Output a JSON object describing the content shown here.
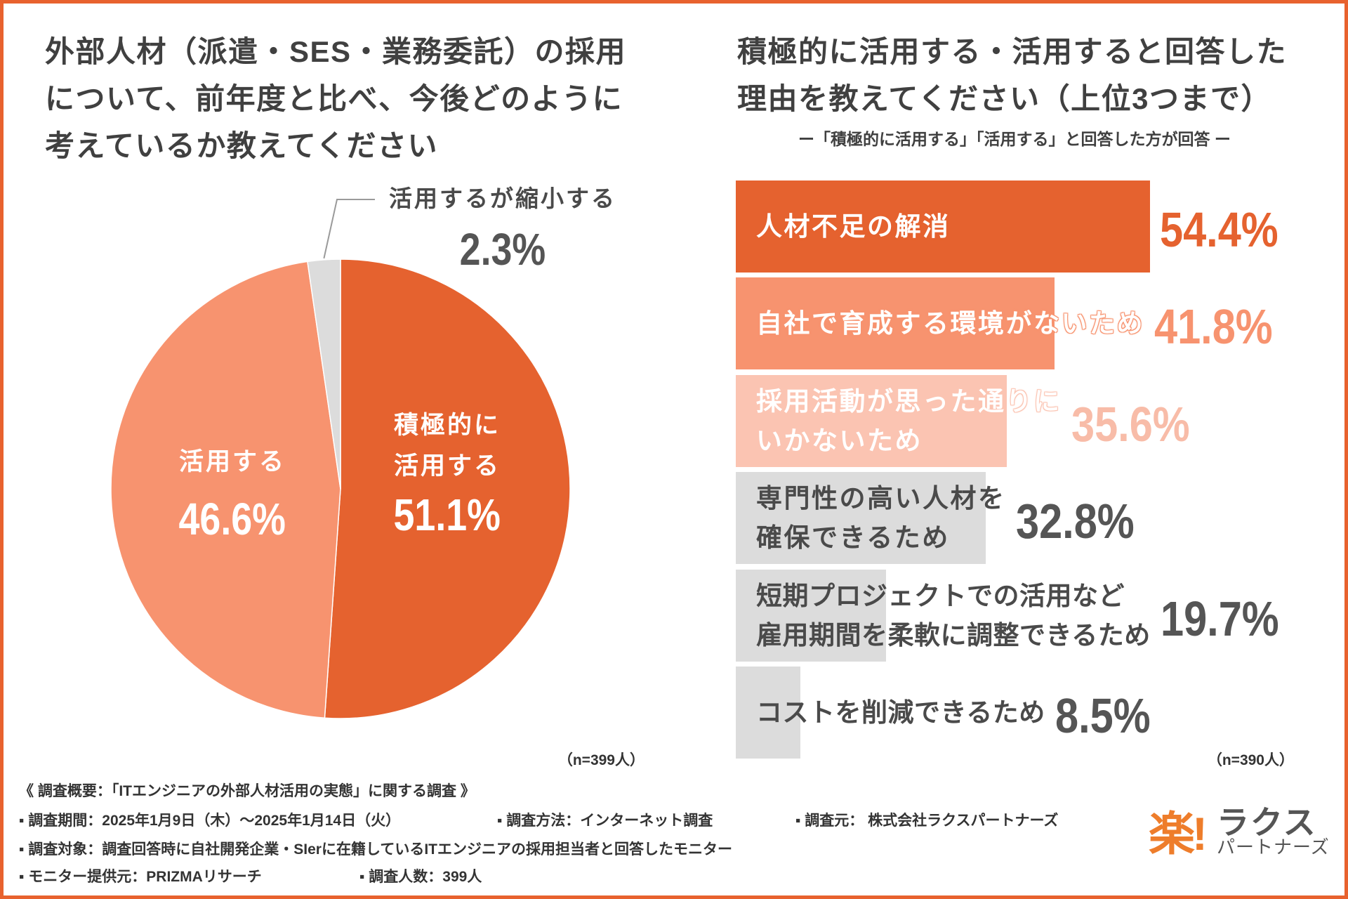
{
  "chart_data": [
    {
      "type": "pie",
      "title_lines": [
        "外部人材（派遣・SES・業務委託）の採用",
        "について、前年度と比べ、今後どのように",
        "考えているか教えてください"
      ],
      "categories": [
        [
          "積極的に",
          "活用する"
        ],
        [
          "活用する"
        ],
        [
          "活用するが縮小する"
        ]
      ],
      "values": [
        51.1,
        46.6,
        2.3
      ],
      "value_labels": [
        "51.1%",
        "46.6%",
        "2.3%"
      ],
      "colors": [
        "#E5622F",
        "#F7936F",
        "#DCDCDC"
      ],
      "label_colors": [
        "#FFFFFF",
        "#FFFFFF",
        "#4A4A4A"
      ],
      "leader_line_on": [
        false,
        false,
        true
      ],
      "sample_note": "（n=399人）"
    },
    {
      "type": "bar",
      "title_lines": [
        "積極的に活用する・活用すると回答した",
        "理由を教えてください（上位3つまで）"
      ],
      "subtitle": "ー「積極的に活用する」「活用する」と回答した方が回答 ー",
      "categories": [
        [
          "人材不足の解消"
        ],
        [
          "自社で育成する環境がないため"
        ],
        [
          "採用活動が思った通りに",
          "いかないため"
        ],
        [
          "専門性の高い人材を",
          "確保できるため"
        ],
        [
          "短期プロジェクトでの活用など",
          "雇用期間を柔軟に調整できるため"
        ],
        [
          "コストを削減できるため"
        ]
      ],
      "values": [
        54.4,
        41.8,
        35.6,
        32.8,
        19.7,
        8.5
      ],
      "value_labels": [
        "54.4%",
        "41.8%",
        "35.6%",
        "32.8%",
        "19.7%",
        "8.5%"
      ],
      "xlim": [
        0,
        100
      ],
      "bar_colors": [
        "#E5622F",
        "#F7936F",
        "#FBC4B2",
        "#DCDCDC",
        "#DCDCDC",
        "#DCDCDC"
      ],
      "label_colors": [
        "#FFFFFF",
        "#FFFFFF",
        "#FFFFFF",
        "#4A4A4A",
        "#4A4A4A",
        "#4A4A4A"
      ],
      "value_colors": [
        "#E5622F",
        "#F7936F",
        "#F8BCA8",
        "#555555",
        "#555555",
        "#555555"
      ],
      "sample_note": "（n=390人）"
    }
  ],
  "survey_summary": {
    "heading": "《 調査概要：「ITエンジニアの外部人材活用の実態」に関する調査 》",
    "period": "▪ 調査期間：2025年1月9日（木）～2025年1月14日（火）",
    "method": "▪ 調査方法：インターネット調査",
    "source": "▪ 調査元： 株式会社ラクスパートナーズ",
    "target": "▪ 調査対象：調査回答時に自社開発企業・SIerに在籍しているITエンジニアの採用担当者と回答したモニター",
    "panel": "▪ モニター提供元：PRIZMAリサーチ",
    "respondents": "▪ 調査人数：399人"
  },
  "logo": {
    "mark": "楽!",
    "name": "ラクス",
    "sub": "パートナーズ"
  }
}
